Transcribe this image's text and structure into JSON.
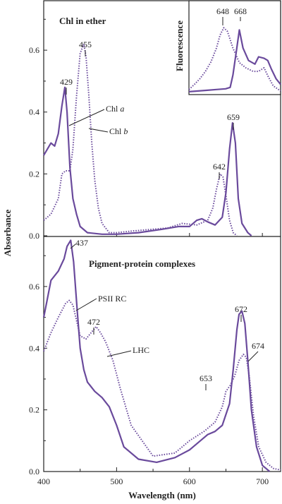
{
  "chart_data": [
    {
      "panel": "top",
      "type": "line",
      "title": "Chl in ether",
      "ylabel": "Absorbance",
      "xlim": [
        400,
        725
      ],
      "ylim": [
        0,
        0.76
      ],
      "yticks": [
        "0.0",
        "0.2",
        "0.4",
        "0.6"
      ],
      "series": [
        {
          "name": "Chl a",
          "style": "solid",
          "x": [
            400,
            410,
            415,
            420,
            425,
            429,
            432,
            436,
            440,
            445,
            450,
            460,
            480,
            500,
            530,
            560,
            585,
            600,
            610,
            617,
            625,
            635,
            645,
            650,
            655,
            659,
            663,
            667,
            672,
            680,
            685
          ],
          "y": [
            0.26,
            0.3,
            0.29,
            0.33,
            0.42,
            0.48,
            0.4,
            0.22,
            0.12,
            0.07,
            0.03,
            0.01,
            0.005,
            0.005,
            0.01,
            0.02,
            0.03,
            0.03,
            0.05,
            0.055,
            0.045,
            0.035,
            0.06,
            0.14,
            0.28,
            0.365,
            0.3,
            0.12,
            0.04,
            0.01,
            0.0
          ]
        },
        {
          "name": "Chl b",
          "style": "dotted",
          "x": [
            400,
            410,
            420,
            425,
            430,
            436,
            440,
            445,
            450,
            455,
            458,
            462,
            466,
            470,
            475,
            480,
            490,
            500,
            520,
            545,
            570,
            590,
            610,
            625,
            632,
            637,
            642,
            646,
            650,
            655,
            660,
            665
          ],
          "y": [
            0.05,
            0.07,
            0.12,
            0.2,
            0.21,
            0.21,
            0.28,
            0.45,
            0.59,
            0.62,
            0.58,
            0.45,
            0.3,
            0.18,
            0.09,
            0.04,
            0.01,
            0.01,
            0.015,
            0.02,
            0.025,
            0.04,
            0.035,
            0.05,
            0.09,
            0.15,
            0.2,
            0.19,
            0.13,
            0.05,
            0.01,
            0.0
          ]
        }
      ],
      "annotations": [
        "429",
        "455",
        "659",
        "642"
      ],
      "series_labels": [
        {
          "text": "Chl ",
          "italic": "a"
        },
        {
          "text": "Chl ",
          "italic": "b"
        }
      ],
      "inset": {
        "ylabel": "Fluorescence",
        "peaks": [
          "648",
          "668"
        ],
        "series": [
          {
            "name": "Chl a",
            "style": "solid",
            "x": [
              0,
              0.1,
              0.2,
              0.3,
              0.4,
              0.45,
              0.48,
              0.52,
              0.55,
              0.59,
              0.65,
              0.72,
              0.76,
              0.82,
              0.86,
              0.9,
              0.95,
              1.0
            ],
            "y": [
              0.02,
              0.03,
              0.04,
              0.05,
              0.06,
              0.08,
              0.25,
              0.6,
              0.87,
              0.62,
              0.45,
              0.4,
              0.5,
              0.48,
              0.45,
              0.33,
              0.2,
              0.12
            ]
          },
          {
            "name": "Chl b",
            "style": "dotted",
            "x": [
              0,
              0.06,
              0.12,
              0.18,
              0.24,
              0.3,
              0.34,
              0.38,
              0.42,
              0.48,
              0.55,
              0.62,
              0.7,
              0.76,
              0.82,
              0.86,
              0.92,
              1.0
            ],
            "y": [
              0.05,
              0.12,
              0.2,
              0.3,
              0.43,
              0.62,
              0.8,
              0.9,
              0.85,
              0.62,
              0.42,
              0.35,
              0.3,
              0.3,
              0.35,
              0.24,
              0.1,
              0.03
            ]
          }
        ]
      }
    },
    {
      "panel": "bottom",
      "type": "line",
      "title": "Pigment-protein complexes",
      "xlabel": "Wavelength (nm)",
      "ylabel": "Absorbance",
      "xlim": [
        400,
        725
      ],
      "ylim": [
        0,
        0.76
      ],
      "xticks": [
        "400",
        "500",
        "600",
        "700"
      ],
      "yticks": [
        "0.0",
        "0.2",
        "0.4",
        "0.6"
      ],
      "series": [
        {
          "name": "PSII RC",
          "style": "solid",
          "x": [
            400,
            405,
            410,
            420,
            428,
            432,
            437,
            441,
            446,
            450,
            455,
            460,
            470,
            480,
            490,
            500,
            510,
            530,
            555,
            580,
            600,
            615,
            625,
            635,
            645,
            655,
            660,
            665,
            668,
            672,
            676,
            680,
            685,
            692,
            700,
            710
          ],
          "y": [
            0.5,
            0.56,
            0.62,
            0.65,
            0.69,
            0.73,
            0.75,
            0.68,
            0.52,
            0.4,
            0.33,
            0.29,
            0.26,
            0.24,
            0.21,
            0.15,
            0.08,
            0.04,
            0.03,
            0.045,
            0.07,
            0.1,
            0.12,
            0.13,
            0.15,
            0.22,
            0.33,
            0.46,
            0.51,
            0.52,
            0.48,
            0.36,
            0.2,
            0.08,
            0.02,
            0.0
          ]
        },
        {
          "name": "LHC",
          "style": "dotted",
          "x": [
            400,
            410,
            420,
            430,
            435,
            440,
            445,
            450,
            458,
            465,
            472,
            478,
            485,
            495,
            505,
            520,
            550,
            580,
            600,
            620,
            635,
            645,
            650,
            653,
            656,
            662,
            668,
            674,
            678,
            682,
            688,
            695,
            705,
            715,
            725
          ],
          "y": [
            0.39,
            0.45,
            0.5,
            0.545,
            0.555,
            0.54,
            0.49,
            0.44,
            0.43,
            0.45,
            0.47,
            0.45,
            0.42,
            0.36,
            0.27,
            0.15,
            0.05,
            0.06,
            0.1,
            0.13,
            0.16,
            0.21,
            0.26,
            0.27,
            0.28,
            0.31,
            0.36,
            0.38,
            0.37,
            0.31,
            0.18,
            0.08,
            0.03,
            0.01,
            0.005
          ]
        }
      ],
      "annotations": [
        "437",
        "472",
        "672",
        "674",
        "653"
      ],
      "series_labels": [
        "PSII RC",
        "LHC"
      ]
    }
  ],
  "colors": {
    "line": "#6a4a9c",
    "axis": "#222222"
  }
}
